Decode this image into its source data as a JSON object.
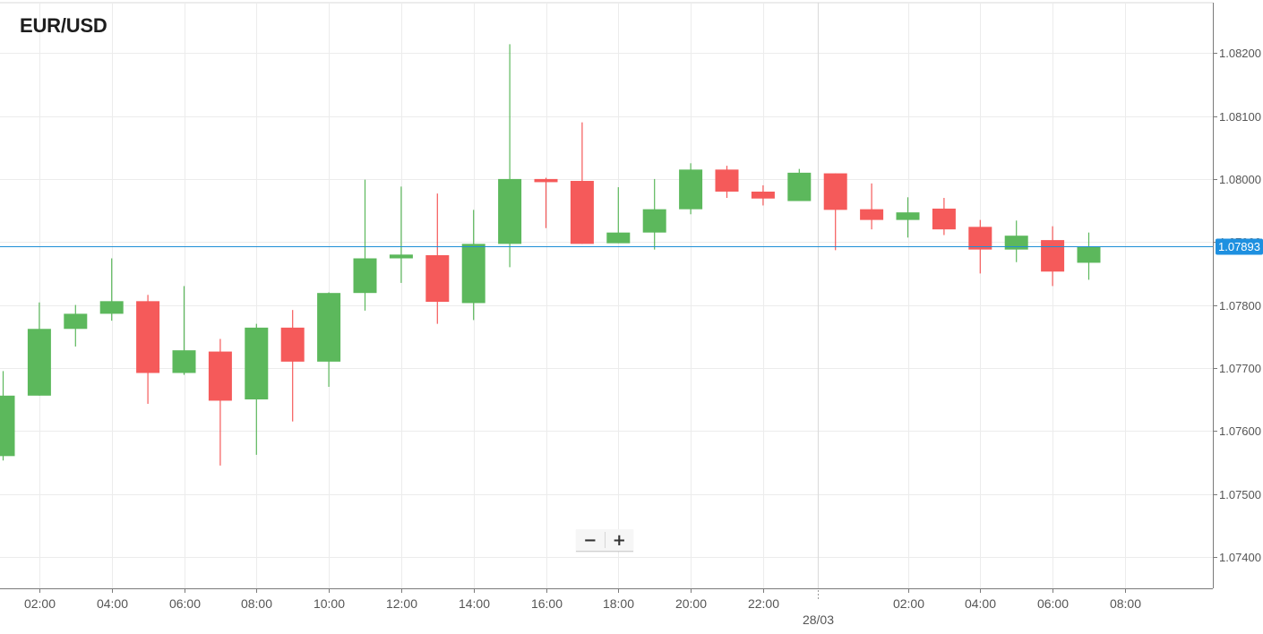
{
  "chart_data": {
    "type": "candlestick",
    "title": "EUR/USD",
    "ylim": [
      1.0735,
      1.0828
    ],
    "y_ticks": [
      {
        "value": 1.074,
        "label": "1.07400"
      },
      {
        "value": 1.075,
        "label": "1.07500"
      },
      {
        "value": 1.076,
        "label": "1.07600"
      },
      {
        "value": 1.077,
        "label": "1.07700"
      },
      {
        "value": 1.078,
        "label": "1.07800"
      },
      {
        "value": 1.079,
        "label": "1.07900"
      },
      {
        "value": 1.08,
        "label": "1.08000"
      },
      {
        "value": 1.081,
        "label": "1.08100"
      },
      {
        "value": 1.082,
        "label": "1.08200"
      }
    ],
    "x_ticks": [
      {
        "index": 1,
        "label": "02:00"
      },
      {
        "index": 3,
        "label": "04:00"
      },
      {
        "index": 5,
        "label": "06:00"
      },
      {
        "index": 7,
        "label": "08:00"
      },
      {
        "index": 9,
        "label": "10:00"
      },
      {
        "index": 11,
        "label": "12:00"
      },
      {
        "index": 13,
        "label": "14:00"
      },
      {
        "index": 15,
        "label": "16:00"
      },
      {
        "index": 17,
        "label": "18:00"
      },
      {
        "index": 19,
        "label": "20:00"
      },
      {
        "index": 21,
        "label": "22:00"
      },
      {
        "index": 25,
        "label": "02:00"
      },
      {
        "index": 27,
        "label": "04:00"
      },
      {
        "index": 29,
        "label": "06:00"
      },
      {
        "index": 31,
        "label": "08:00"
      }
    ],
    "day_separator": {
      "index": 22.5,
      "label": "28/03"
    },
    "current_price": {
      "value": 1.07893,
      "label": "1.07893"
    },
    "colors": {
      "up": "#5cb85c",
      "down": "#f55a5a",
      "grid": "#ececec",
      "axis": "#7a7a7a",
      "price_line": "#1f8fd6",
      "price_tag": "#1e90e0",
      "text": "#555555"
    },
    "candles": [
      {
        "time": "01:00",
        "open": 1.0756,
        "high": 1.07695,
        "low": 1.07553,
        "close": 1.07656
      },
      {
        "time": "02:00",
        "open": 1.07656,
        "high": 1.07804,
        "low": 1.07656,
        "close": 1.07762
      },
      {
        "time": "03:00",
        "open": 1.07762,
        "high": 1.078,
        "low": 1.07734,
        "close": 1.07786
      },
      {
        "time": "04:00",
        "open": 1.07786,
        "high": 1.07874,
        "low": 1.07775,
        "close": 1.07806
      },
      {
        "time": "05:00",
        "open": 1.07806,
        "high": 1.07816,
        "low": 1.07643,
        "close": 1.07692
      },
      {
        "time": "06:00",
        "open": 1.07692,
        "high": 1.0783,
        "low": 1.07689,
        "close": 1.07728
      },
      {
        "time": "07:00",
        "open": 1.07726,
        "high": 1.07746,
        "low": 1.07545,
        "close": 1.07648
      },
      {
        "time": "08:00",
        "open": 1.0765,
        "high": 1.0777,
        "low": 1.07562,
        "close": 1.07764
      },
      {
        "time": "09:00",
        "open": 1.07764,
        "high": 1.07792,
        "low": 1.07615,
        "close": 1.0771
      },
      {
        "time": "10:00",
        "open": 1.0771,
        "high": 1.0782,
        "low": 1.0767,
        "close": 1.07819
      },
      {
        "time": "11:00",
        "open": 1.07819,
        "high": 1.07999,
        "low": 1.07791,
        "close": 1.07874
      },
      {
        "time": "12:00",
        "open": 1.07874,
        "high": 1.07988,
        "low": 1.07835,
        "close": 1.0788
      },
      {
        "time": "13:00",
        "open": 1.07879,
        "high": 1.07977,
        "low": 1.0777,
        "close": 1.07805
      },
      {
        "time": "14:00",
        "open": 1.07803,
        "high": 1.07951,
        "low": 1.07776,
        "close": 1.07897
      },
      {
        "time": "15:00",
        "open": 1.07897,
        "high": 1.08214,
        "low": 1.0786,
        "close": 1.08
      },
      {
        "time": "16:00",
        "open": 1.08,
        "high": 1.08002,
        "low": 1.07922,
        "close": 1.07995
      },
      {
        "time": "17:00",
        "open": 1.07997,
        "high": 1.0809,
        "low": 1.07897,
        "close": 1.07897
      },
      {
        "time": "18:00",
        "open": 1.07898,
        "high": 1.07987,
        "low": 1.07898,
        "close": 1.07915
      },
      {
        "time": "19:00",
        "open": 1.07915,
        "high": 1.08,
        "low": 1.07888,
        "close": 1.07952
      },
      {
        "time": "20:00",
        "open": 1.07952,
        "high": 1.08025,
        "low": 1.07944,
        "close": 1.08015
      },
      {
        "time": "21:00",
        "open": 1.08015,
        "high": 1.08021,
        "low": 1.0797,
        "close": 1.0798
      },
      {
        "time": "22:00",
        "open": 1.0798,
        "high": 1.0799,
        "low": 1.07958,
        "close": 1.07969
      },
      {
        "time": "23:00",
        "open": 1.07965,
        "high": 1.08016,
        "low": 1.07965,
        "close": 1.0801
      },
      {
        "time": "00:00",
        "open": 1.08009,
        "high": 1.08009,
        "low": 1.07887,
        "close": 1.07951
      },
      {
        "time": "01:00",
        "open": 1.07952,
        "high": 1.07993,
        "low": 1.0792,
        "close": 1.07935
      },
      {
        "time": "02:00",
        "open": 1.07935,
        "high": 1.07971,
        "low": 1.07907,
        "close": 1.07947
      },
      {
        "time": "03:00",
        "open": 1.07953,
        "high": 1.0797,
        "low": 1.07911,
        "close": 1.0792
      },
      {
        "time": "04:00",
        "open": 1.07924,
        "high": 1.07935,
        "low": 1.0785,
        "close": 1.07888
      },
      {
        "time": "05:00",
        "open": 1.07888,
        "high": 1.07934,
        "low": 1.07868,
        "close": 1.0791
      },
      {
        "time": "06:00",
        "open": 1.07903,
        "high": 1.07925,
        "low": 1.0783,
        "close": 1.07853
      },
      {
        "time": "07:00",
        "open": 1.07867,
        "high": 1.07915,
        "low": 1.0784,
        "close": 1.07893
      }
    ]
  }
}
